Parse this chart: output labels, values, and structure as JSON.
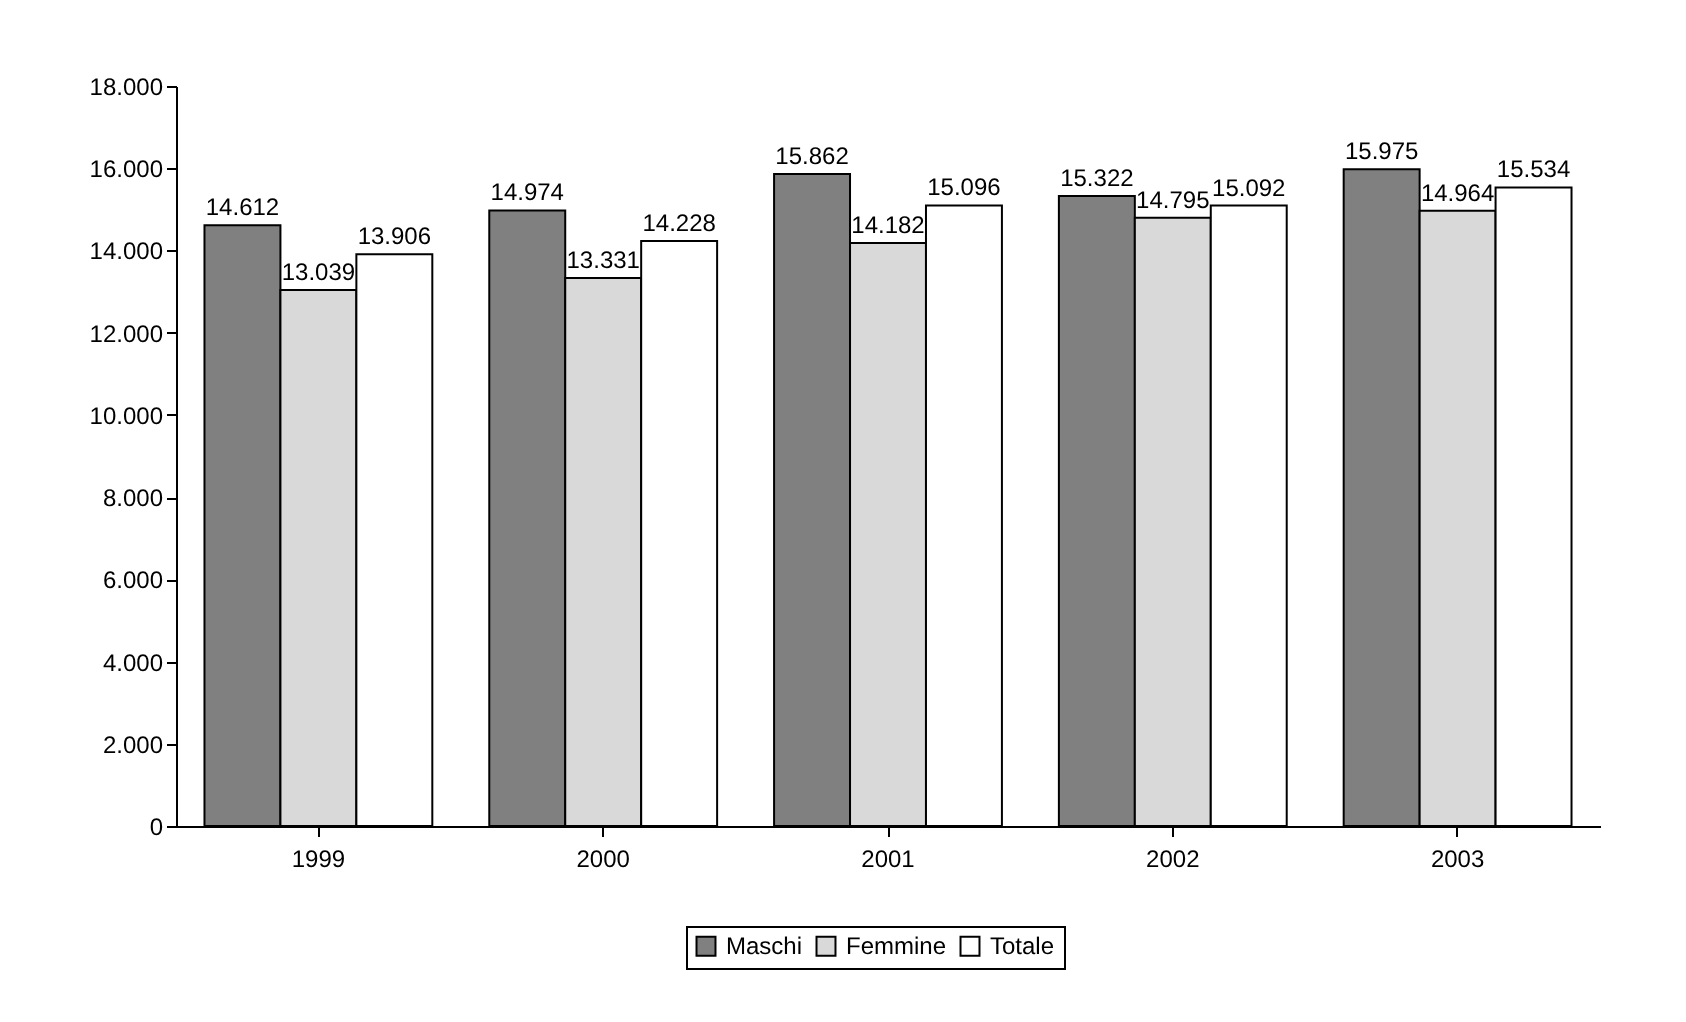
{
  "chart_data": {
    "type": "bar",
    "categories": [
      "1999",
      "2000",
      "2001",
      "2002",
      "2003"
    ],
    "series": [
      {
        "name": "Maschi",
        "color": "#808080",
        "values": [
          14612,
          14974,
          15862,
          15322,
          15975
        ],
        "value_labels": [
          "14.612",
          "14.974",
          "15.862",
          "15.322",
          "15.975"
        ]
      },
      {
        "name": "Femmine",
        "color": "#d9d9d9",
        "values": [
          13039,
          13331,
          14182,
          14795,
          14964
        ],
        "value_labels": [
          "13.039",
          "13.331",
          "14.182",
          "14.795",
          "14.964"
        ]
      },
      {
        "name": "Totale",
        "color": "#ffffff",
        "values": [
          13906,
          14228,
          15096,
          15092,
          15534
        ],
        "value_labels": [
          "13.906",
          "14.228",
          "15.096",
          "15.092",
          "15.534"
        ]
      }
    ],
    "ylim": [
      0,
      18000
    ],
    "yticks": [
      {
        "value": 0,
        "label": "0"
      },
      {
        "value": 2000,
        "label": "2.000"
      },
      {
        "value": 4000,
        "label": "4.000"
      },
      {
        "value": 6000,
        "label": "6.000"
      },
      {
        "value": 8000,
        "label": "8.000"
      },
      {
        "value": 10000,
        "label": "10.000"
      },
      {
        "value": 12000,
        "label": "12.000"
      },
      {
        "value": 14000,
        "label": "14.000"
      },
      {
        "value": 16000,
        "label": "16.000"
      },
      {
        "value": 18000,
        "label": "18.000"
      }
    ],
    "grid": false,
    "legend": "bottom"
  }
}
